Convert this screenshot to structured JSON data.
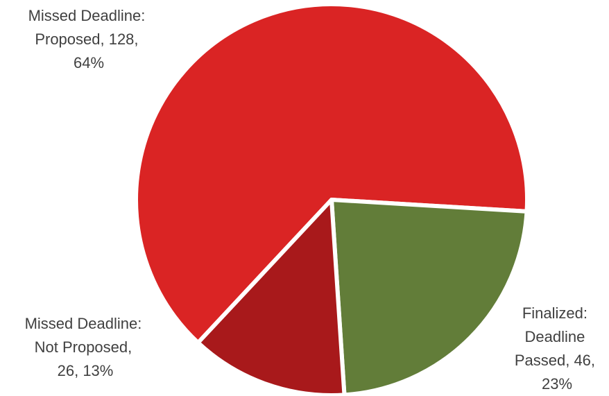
{
  "chart_data": {
    "type": "pie",
    "title": "",
    "slices": [
      {
        "name": "Missed Deadline: Proposed",
        "value": 128,
        "percent": "64%",
        "color": "#da2424",
        "label_lines": [
          "Missed Deadline:",
          "Proposed, 128,",
          "64%"
        ]
      },
      {
        "name": "Finalized: Deadline Passed",
        "value": 46,
        "percent": "23%",
        "color": "#627d39",
        "label_lines": [
          "Finalized:",
          "Deadline",
          "Passed, 46,",
          "23%"
        ]
      },
      {
        "name": "Missed Deadline: Not Proposed",
        "value": 26,
        "percent": "13%",
        "color": "#a8191b",
        "label_lines": [
          "Missed Deadline:",
          "Not Proposed,",
          "26, 13%"
        ]
      }
    ]
  }
}
